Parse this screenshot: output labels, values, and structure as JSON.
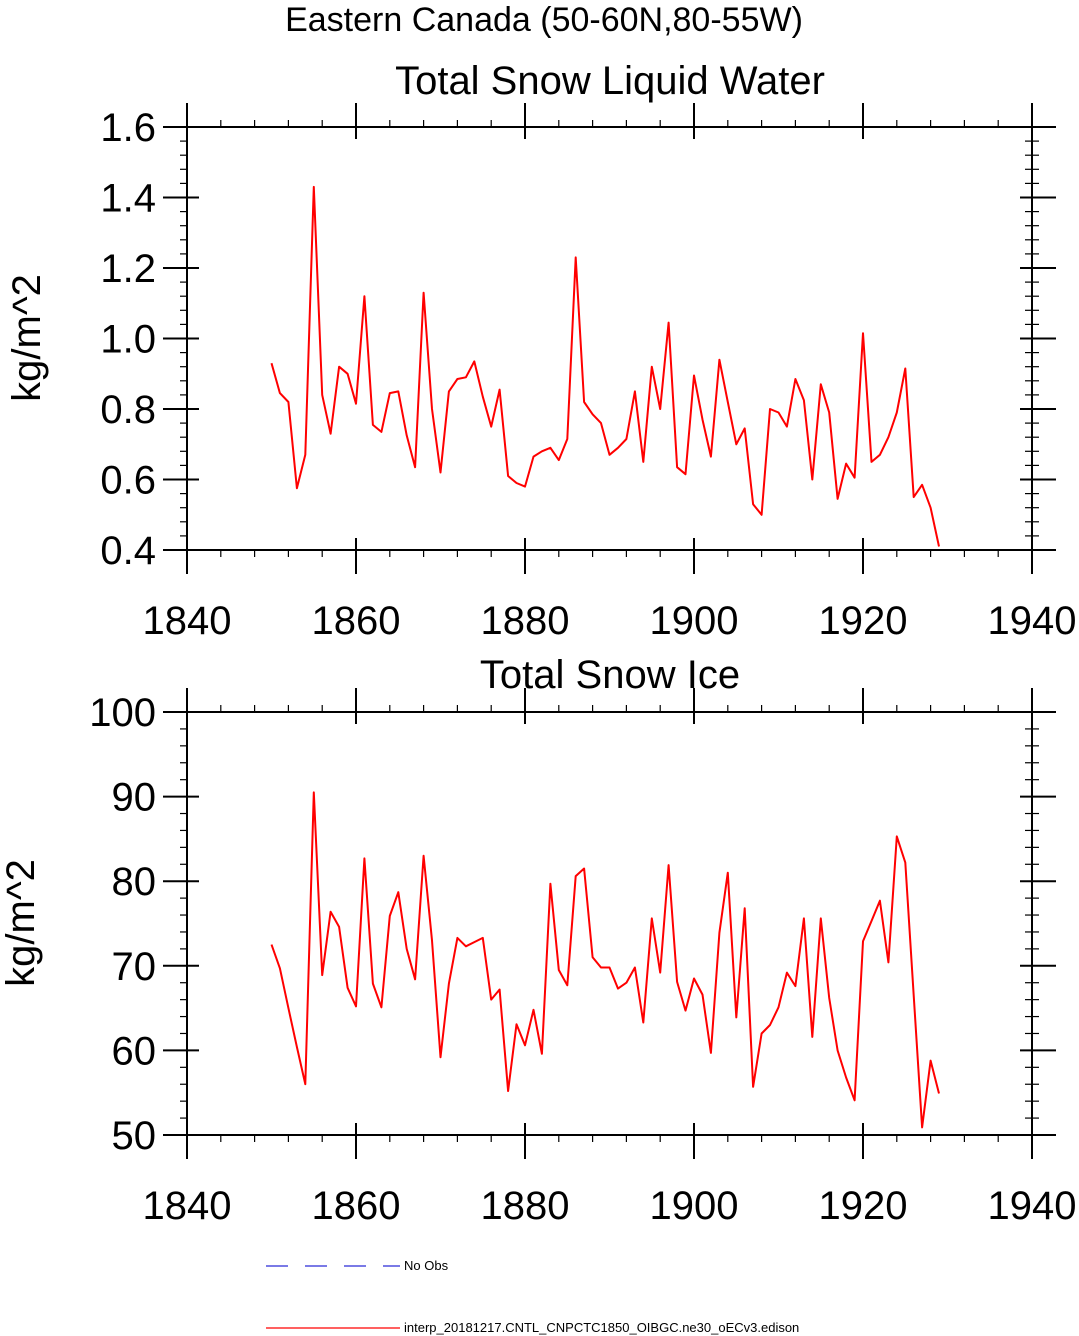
{
  "figure": {
    "super_title": "Eastern Canada (50-60N,80-55W)"
  },
  "legend": {
    "entries": [
      {
        "label": "No Obs",
        "color": "#2a2ad8",
        "style": "dashed"
      },
      {
        "label": "interp_20181217.CNTL_CNPCTC1850_OIBGC.ne30_oECv3.edison",
        "color": "#ff0000",
        "style": "solid"
      }
    ]
  },
  "chart_data": [
    {
      "type": "line",
      "title": "Total Snow Liquid Water",
      "xlabel": "",
      "ylabel": "kg/m^2",
      "xlim": [
        1840,
        1940
      ],
      "ylim": [
        0.4,
        1.6
      ],
      "x_ticks": [
        1840,
        1860,
        1880,
        1900,
        1920,
        1940
      ],
      "x_tick_labels": [
        "1840",
        "1860",
        "1880",
        "1900",
        "1920",
        "1940"
      ],
      "y_ticks": [
        0.4,
        0.6,
        0.8,
        1.0,
        1.2,
        1.4,
        1.6
      ],
      "y_tick_labels": [
        "0.4",
        "0.6",
        "0.8",
        "1.0",
        "1.2",
        "1.4",
        "1.6"
      ],
      "x_minor_step": 4,
      "y_minor_step": 0.04,
      "grid": false,
      "series": [
        {
          "name": "interp_20181217.CNTL_CNPCTC1850_OIBGC.ne30_oECv3.edison",
          "color": "#ff0000",
          "x": [
            1850,
            1851,
            1852,
            1853,
            1854,
            1855,
            1856,
            1857,
            1858,
            1859,
            1860,
            1861,
            1862,
            1863,
            1864,
            1865,
            1866,
            1867,
            1868,
            1869,
            1870,
            1871,
            1872,
            1873,
            1874,
            1875,
            1876,
            1877,
            1878,
            1879,
            1880,
            1881,
            1882,
            1883,
            1884,
            1885,
            1886,
            1887,
            1888,
            1889,
            1890,
            1891,
            1892,
            1893,
            1894,
            1895,
            1896,
            1897,
            1898,
            1899,
            1900,
            1901,
            1902,
            1903,
            1904,
            1905,
            1906,
            1907,
            1908,
            1909,
            1910,
            1911,
            1912,
            1913,
            1914,
            1915,
            1916,
            1917,
            1918,
            1919,
            1920,
            1921,
            1922,
            1923,
            1924,
            1925,
            1926,
            1927,
            1928,
            1929
          ],
          "values": [
            0.93,
            0.845,
            0.82,
            0.575,
            0.67,
            1.43,
            0.84,
            0.73,
            0.92,
            0.9,
            0.815,
            1.12,
            0.755,
            0.735,
            0.845,
            0.85,
            0.725,
            0.635,
            1.13,
            0.8,
            0.62,
            0.85,
            0.885,
            0.89,
            0.935,
            0.835,
            0.75,
            0.855,
            0.61,
            0.59,
            0.58,
            0.665,
            0.68,
            0.69,
            0.655,
            0.715,
            1.23,
            0.82,
            0.785,
            0.76,
            0.67,
            0.69,
            0.715,
            0.85,
            0.65,
            0.92,
            0.8,
            1.045,
            0.635,
            0.615,
            0.895,
            0.77,
            0.665,
            0.94,
            0.82,
            0.7,
            0.745,
            0.53,
            0.5,
            0.8,
            0.79,
            0.75,
            0.885,
            0.825,
            0.6,
            0.87,
            0.79,
            0.545,
            0.645,
            0.605,
            1.015,
            0.65,
            0.67,
            0.72,
            0.79,
            0.915,
            0.55,
            0.585,
            0.52,
            0.41
          ]
        }
      ]
    },
    {
      "type": "line",
      "title": "Total Snow Ice",
      "xlabel": "",
      "ylabel": "kg/m^2",
      "xlim": [
        1840,
        1940
      ],
      "ylim": [
        50,
        100
      ],
      "x_ticks": [
        1840,
        1860,
        1880,
        1900,
        1920,
        1940
      ],
      "x_tick_labels": [
        "1840",
        "1860",
        "1880",
        "1900",
        "1920",
        "1940"
      ],
      "y_ticks": [
        50,
        60,
        70,
        80,
        90,
        100
      ],
      "y_tick_labels": [
        "50",
        "60",
        "70",
        "80",
        "90",
        "100"
      ],
      "x_minor_step": 4,
      "y_minor_step": 2,
      "grid": false,
      "series": [
        {
          "name": "interp_20181217.CNTL_CNPCTC1850_OIBGC.ne30_oECv3.edison",
          "color": "#ff0000",
          "x": [
            1850,
            1851,
            1852,
            1853,
            1854,
            1855,
            1856,
            1857,
            1858,
            1859,
            1860,
            1861,
            1862,
            1863,
            1864,
            1865,
            1866,
            1867,
            1868,
            1869,
            1870,
            1871,
            1872,
            1873,
            1874,
            1875,
            1876,
            1877,
            1878,
            1879,
            1880,
            1881,
            1882,
            1883,
            1884,
            1885,
            1886,
            1887,
            1888,
            1889,
            1890,
            1891,
            1892,
            1893,
            1894,
            1895,
            1896,
            1897,
            1898,
            1899,
            1900,
            1901,
            1902,
            1903,
            1904,
            1905,
            1906,
            1907,
            1908,
            1909,
            1910,
            1911,
            1912,
            1913,
            1914,
            1915,
            1916,
            1917,
            1918,
            1919,
            1920,
            1921,
            1922,
            1923,
            1924,
            1925,
            1926,
            1927,
            1928,
            1929
          ],
          "values": [
            72.5,
            69.7,
            65,
            60.4,
            56,
            90.5,
            68.9,
            76.4,
            74.6,
            67.4,
            65.2,
            82.7,
            67.9,
            65.1,
            75.9,
            78.7,
            72,
            68.4,
            83,
            73,
            59.2,
            67.9,
            73.3,
            72.3,
            72.8,
            73.3,
            66,
            67.2,
            55.2,
            63.1,
            60.6,
            64.8,
            59.6,
            79.7,
            69.5,
            67.7,
            80.6,
            81.5,
            71,
            69.8,
            69.8,
            67.3,
            68,
            69.8,
            63.3,
            75.6,
            69.2,
            81.9,
            68.1,
            64.7,
            68.5,
            66.6,
            59.7,
            73.9,
            81,
            63.9,
            76.8,
            55.7,
            62,
            63,
            65.1,
            69.2,
            67.6,
            75.6,
            61.6,
            75.6,
            66.2,
            60,
            56.8,
            54.1,
            72.9,
            75.3,
            77.7,
            70.4,
            85.3,
            82.2,
            66.5,
            50.9,
            58.8,
            54.9
          ]
        }
      ]
    }
  ]
}
